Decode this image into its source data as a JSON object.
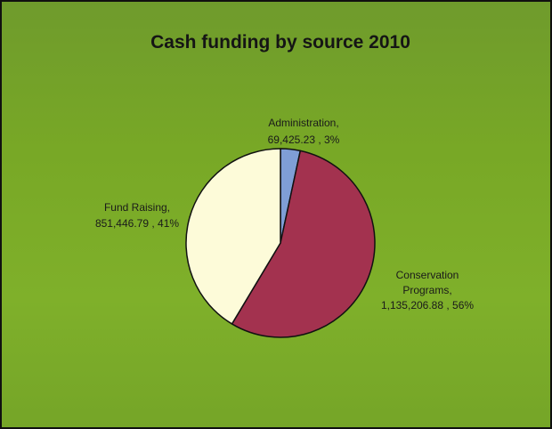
{
  "chart_data": {
    "type": "pie",
    "title": "Cash funding by source 2010",
    "slices": [
      {
        "name": "Administration",
        "value": 69425.23,
        "value_label": "69,425.23",
        "percent_label": "3%",
        "color": "#7f9ed6"
      },
      {
        "name": "Conservation Programs",
        "value": 1135206.88,
        "value_label": "1,135,206.88",
        "percent_label": "56%",
        "color": "#a3324f"
      },
      {
        "name": "Fund Raising",
        "value": 851446.79,
        "value_label": "851,446.79",
        "percent_label": "41%",
        "color": "#fdfbd9"
      }
    ],
    "labels": {
      "administration": [
        "Administration,",
        "69,425.23 , 3%"
      ],
      "conservation": [
        "Conservation",
        "Programs,",
        "1,135,206.88 , 56%"
      ],
      "fund_raising": [
        "Fund Raising,",
        "851,446.79 , 41%"
      ]
    },
    "legend": "none",
    "background_color": "#7aab28"
  }
}
